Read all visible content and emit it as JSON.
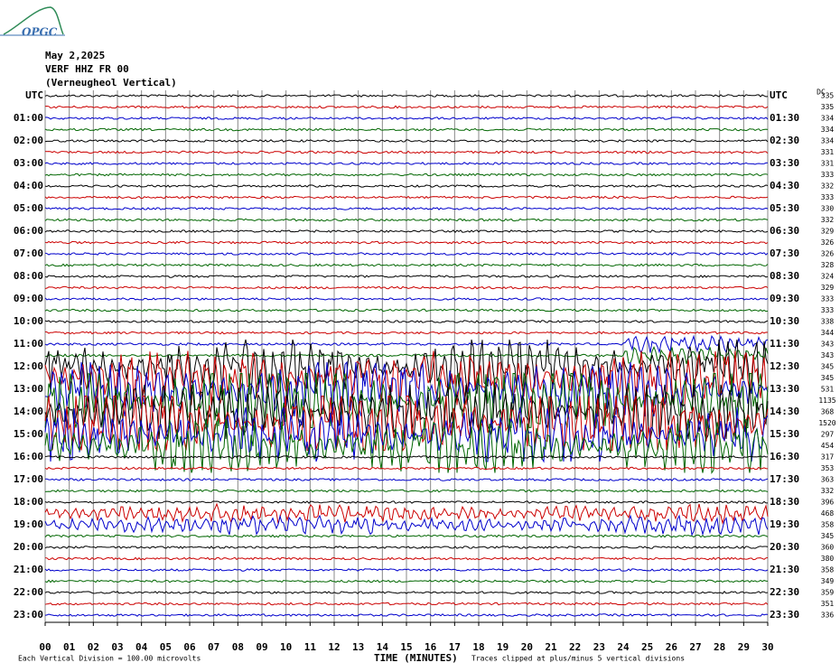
{
  "header": {
    "logo": "OPGC",
    "date": "May 2,2025",
    "station": "VERF HHZ FR 00",
    "description": "(Verneugheol Vertical)"
  },
  "left_labels": [
    "UTC",
    "01:00",
    "02:00",
    "03:00",
    "04:00",
    "05:00",
    "06:00",
    "07:00",
    "08:00",
    "09:00",
    "10:00",
    "11:00",
    "12:00",
    "13:00",
    "14:00",
    "15:00",
    "16:00",
    "17:00",
    "18:00",
    "19:00",
    "20:00",
    "21:00",
    "22:00",
    "23:00"
  ],
  "right_labels": [
    "UTC",
    "01:30",
    "02:30",
    "03:30",
    "04:30",
    "05:30",
    "06:30",
    "07:30",
    "08:30",
    "09:30",
    "10:30",
    "11:30",
    "12:30",
    "13:30",
    "14:30",
    "15:30",
    "16:30",
    "17:30",
    "18:30",
    "19:30",
    "20:30",
    "21:30",
    "22:30",
    "23:30"
  ],
  "dc_header": "DC",
  "dc_values": [
    335,
    335,
    334,
    334,
    334,
    331,
    331,
    333,
    332,
    333,
    330,
    332,
    329,
    326,
    326,
    328,
    324,
    329,
    333,
    333,
    338,
    344,
    343,
    343,
    345,
    345,
    531,
    1135,
    368,
    1520,
    297,
    454,
    317,
    353,
    363,
    332,
    396,
    468,
    358,
    345,
    360,
    380,
    358,
    349,
    359,
    351,
    336
  ],
  "x_ticks": [
    "00",
    "01",
    "02",
    "03",
    "04",
    "05",
    "06",
    "07",
    "08",
    "09",
    "10",
    "11",
    "12",
    "13",
    "14",
    "15",
    "16",
    "17",
    "18",
    "19",
    "20",
    "21",
    "22",
    "23",
    "24",
    "25",
    "26",
    "27",
    "28",
    "29",
    "30"
  ],
  "footer": {
    "scale": "Each Vertical Division =  100.00 microvolts",
    "axis_title": "TIME (MINUTES)",
    "note": "Traces clipped at plus/minus 5 vertical divisions"
  }
}
